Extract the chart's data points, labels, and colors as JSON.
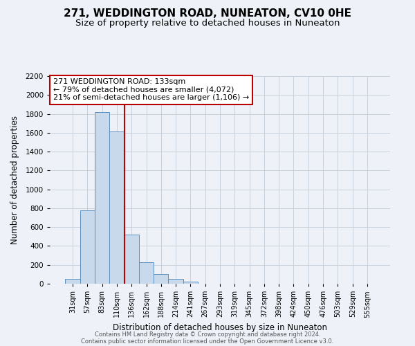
{
  "title": "271, WEDDINGTON ROAD, NUNEATON, CV10 0HE",
  "subtitle": "Size of property relative to detached houses in Nuneaton",
  "xlabel": "Distribution of detached houses by size in Nuneaton",
  "ylabel": "Number of detached properties",
  "categories": [
    "31sqm",
    "57sqm",
    "83sqm",
    "110sqm",
    "136sqm",
    "162sqm",
    "188sqm",
    "214sqm",
    "241sqm",
    "267sqm",
    "293sqm",
    "319sqm",
    "345sqm",
    "372sqm",
    "398sqm",
    "424sqm",
    "450sqm",
    "476sqm",
    "503sqm",
    "529sqm",
    "555sqm"
  ],
  "values": [
    50,
    780,
    1820,
    1610,
    520,
    230,
    105,
    50,
    25,
    0,
    0,
    0,
    0,
    0,
    0,
    0,
    0,
    0,
    0,
    0,
    0
  ],
  "bar_color": "#c9d9ec",
  "bar_edge_color": "#5b8fbe",
  "vline_color": "#bb0000",
  "vline_x": 3.5,
  "annotation_line1": "271 WEDDINGTON ROAD: 133sqm",
  "annotation_line2": "← 79% of detached houses are smaller (4,072)",
  "annotation_line3": "21% of semi-detached houses are larger (1,106) →",
  "annotation_box_color": "#ffffff",
  "annotation_box_edge": "#bb0000",
  "ylim": [
    0,
    2200
  ],
  "yticks": [
    0,
    200,
    400,
    600,
    800,
    1000,
    1200,
    1400,
    1600,
    1800,
    2000,
    2200
  ],
  "bg_color": "#eef2f8",
  "grid_color": "#c8d0dc",
  "footer1": "Contains HM Land Registry data © Crown copyright and database right 2024.",
  "footer2": "Contains public sector information licensed under the Open Government Licence v3.0.",
  "title_fontsize": 11,
  "subtitle_fontsize": 9.5
}
